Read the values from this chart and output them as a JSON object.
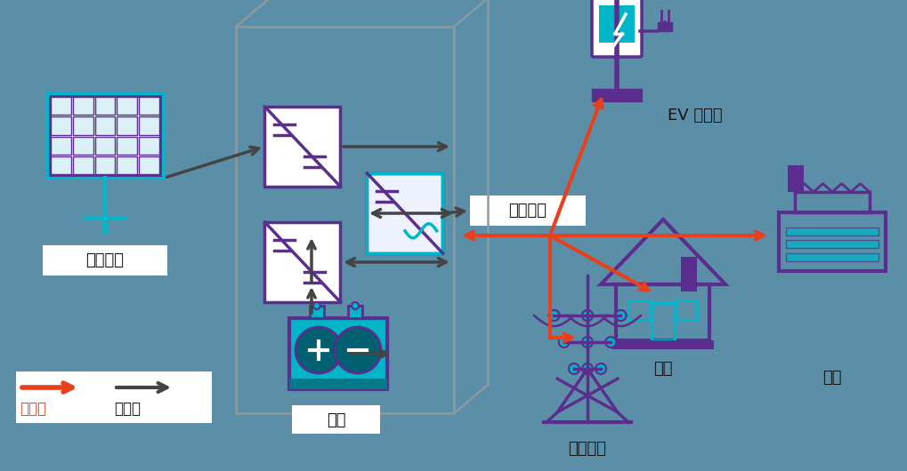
{
  "bg_color": "#5b8fa8",
  "purple": "#5b2d8e",
  "teal": "#00b5c8",
  "red": "#e8401c",
  "dark": "#444444",
  "gray_box": "#888888",
  "white": "#ffffff",
  "text_color": "#111111",
  "title_solar": "太陽能板",
  "title_battery": "電池",
  "title_local_load": "本地負載",
  "title_ev": "EV 充電器",
  "title_industrial": "工業",
  "title_house": "住宅",
  "title_grid": "電力網路",
  "legend_ac": "交流電",
  "legend_dc": "直流電"
}
